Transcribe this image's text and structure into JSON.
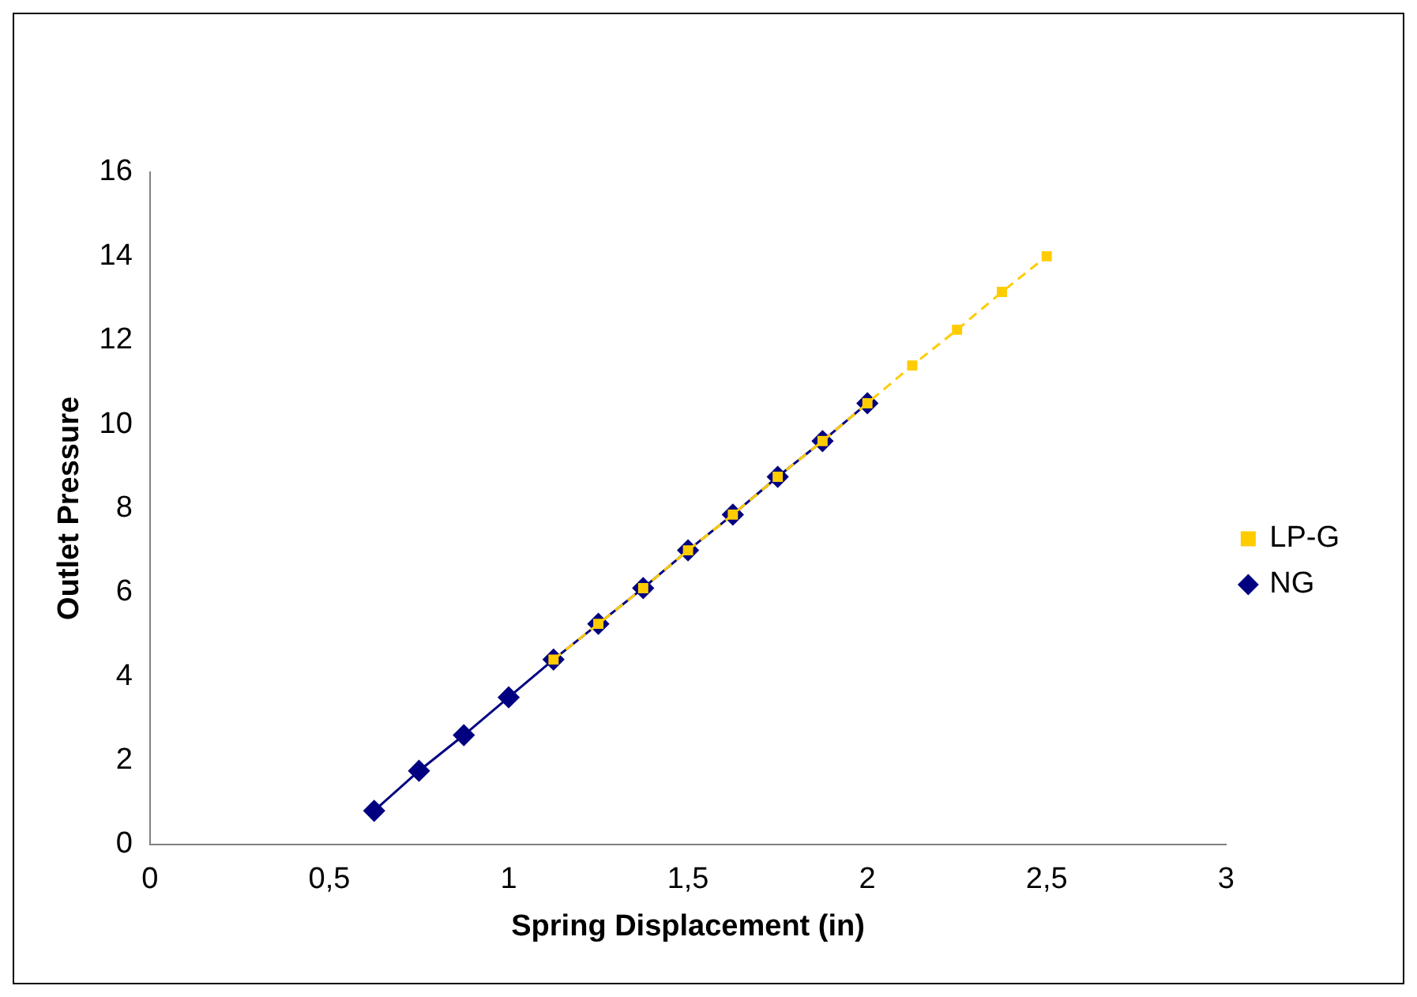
{
  "chart_data": {
    "type": "line",
    "xlabel": "Spring Displacement (in)",
    "ylabel": "Outlet Pressure",
    "xlim": [
      0,
      3
    ],
    "xticks": [
      0,
      {
        "value": 0.5,
        "label": "0,5"
      },
      1,
      {
        "value": 1.5,
        "label": "1,5"
      },
      2,
      {
        "value": 2.5,
        "label": "2,5"
      },
      3
    ],
    "ylim": [
      0,
      16
    ],
    "yticks": [
      0,
      2,
      4,
      6,
      8,
      10,
      12,
      14,
      16
    ],
    "grid": false,
    "legend": "right",
    "series": [
      {
        "name": "NG",
        "color": "#000080",
        "marker": "diamond",
        "line_style": "solid",
        "x": [
          0.625,
          0.75,
          0.875,
          1,
          1.125,
          1.25,
          1.375,
          1.5,
          1.625,
          1.75,
          1.875,
          2
        ],
        "values": [
          0.8,
          1.75,
          2.6,
          3.5,
          4.4,
          5.25,
          6.1,
          7.0,
          7.85,
          8.75,
          9.6,
          10.5
        ]
      },
      {
        "name": "LP-G",
        "color": "#ffcc00",
        "marker": "square",
        "line_style": "dashed",
        "x": [
          1.125,
          1.25,
          1.375,
          1.5,
          1.625,
          1.75,
          1.875,
          2,
          2.125,
          2.25,
          2.375,
          2.5
        ],
        "values": [
          4.4,
          5.25,
          6.1,
          7.0,
          7.85,
          8.75,
          9.6,
          10.5,
          11.4,
          12.25,
          13.15,
          14.0
        ]
      }
    ]
  }
}
